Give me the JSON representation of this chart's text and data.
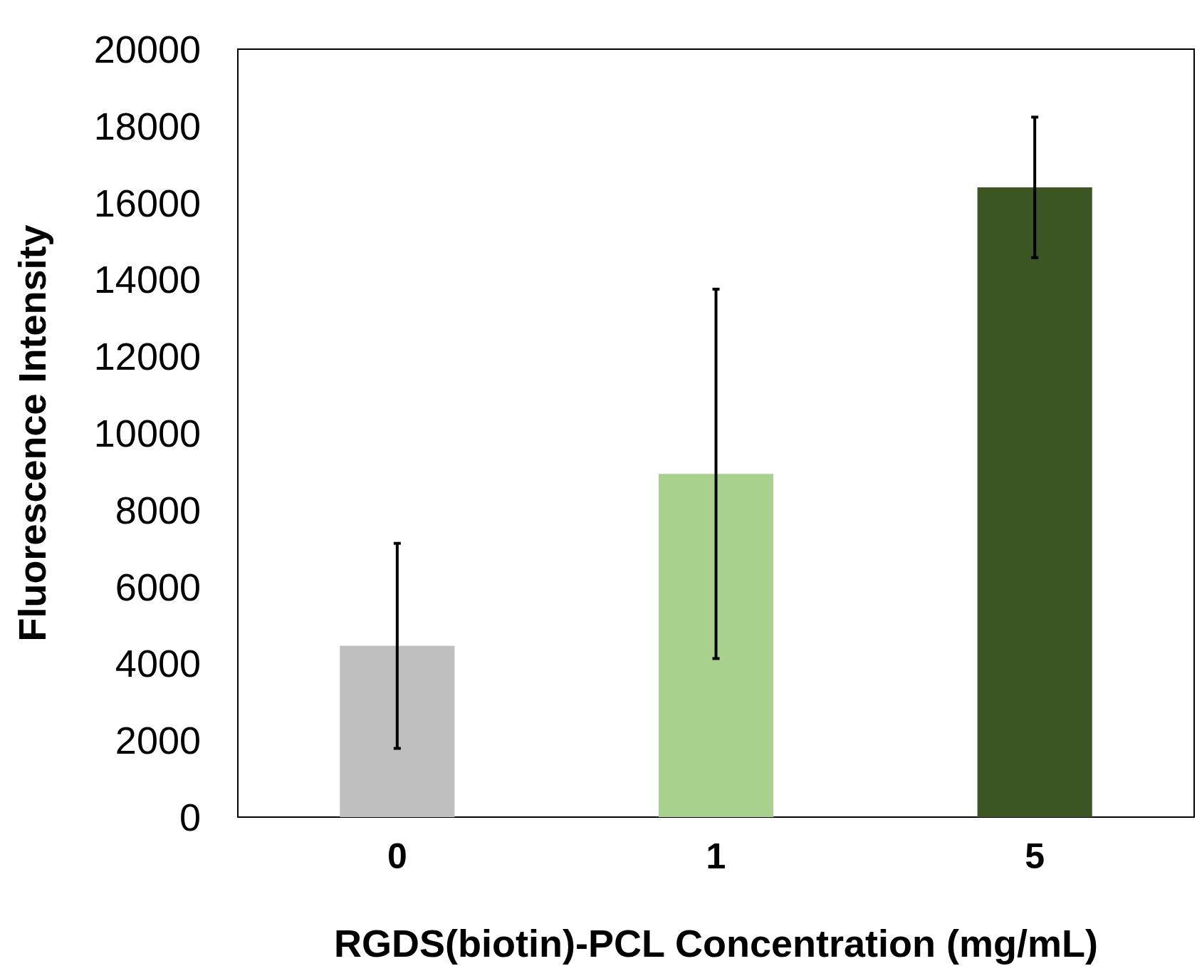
{
  "chart_data": {
    "type": "bar",
    "xlabel": "RGDS(biotin)-PCL Concentration (mg/mL)",
    "ylabel": "Fluorescence Intensity",
    "categories": [
      "0",
      "1",
      "5"
    ],
    "values": [
      4460,
      8940,
      16400
    ],
    "colors": [
      "#bfbfbf",
      "#a9d18e",
      "#3b5523"
    ],
    "errors": [
      2670,
      4810,
      1830
    ],
    "ylim": [
      0,
      20000
    ],
    "yticks": [
      0,
      2000,
      4000,
      6000,
      8000,
      10000,
      12000,
      14000,
      16000,
      18000,
      20000
    ],
    "grid": false
  }
}
